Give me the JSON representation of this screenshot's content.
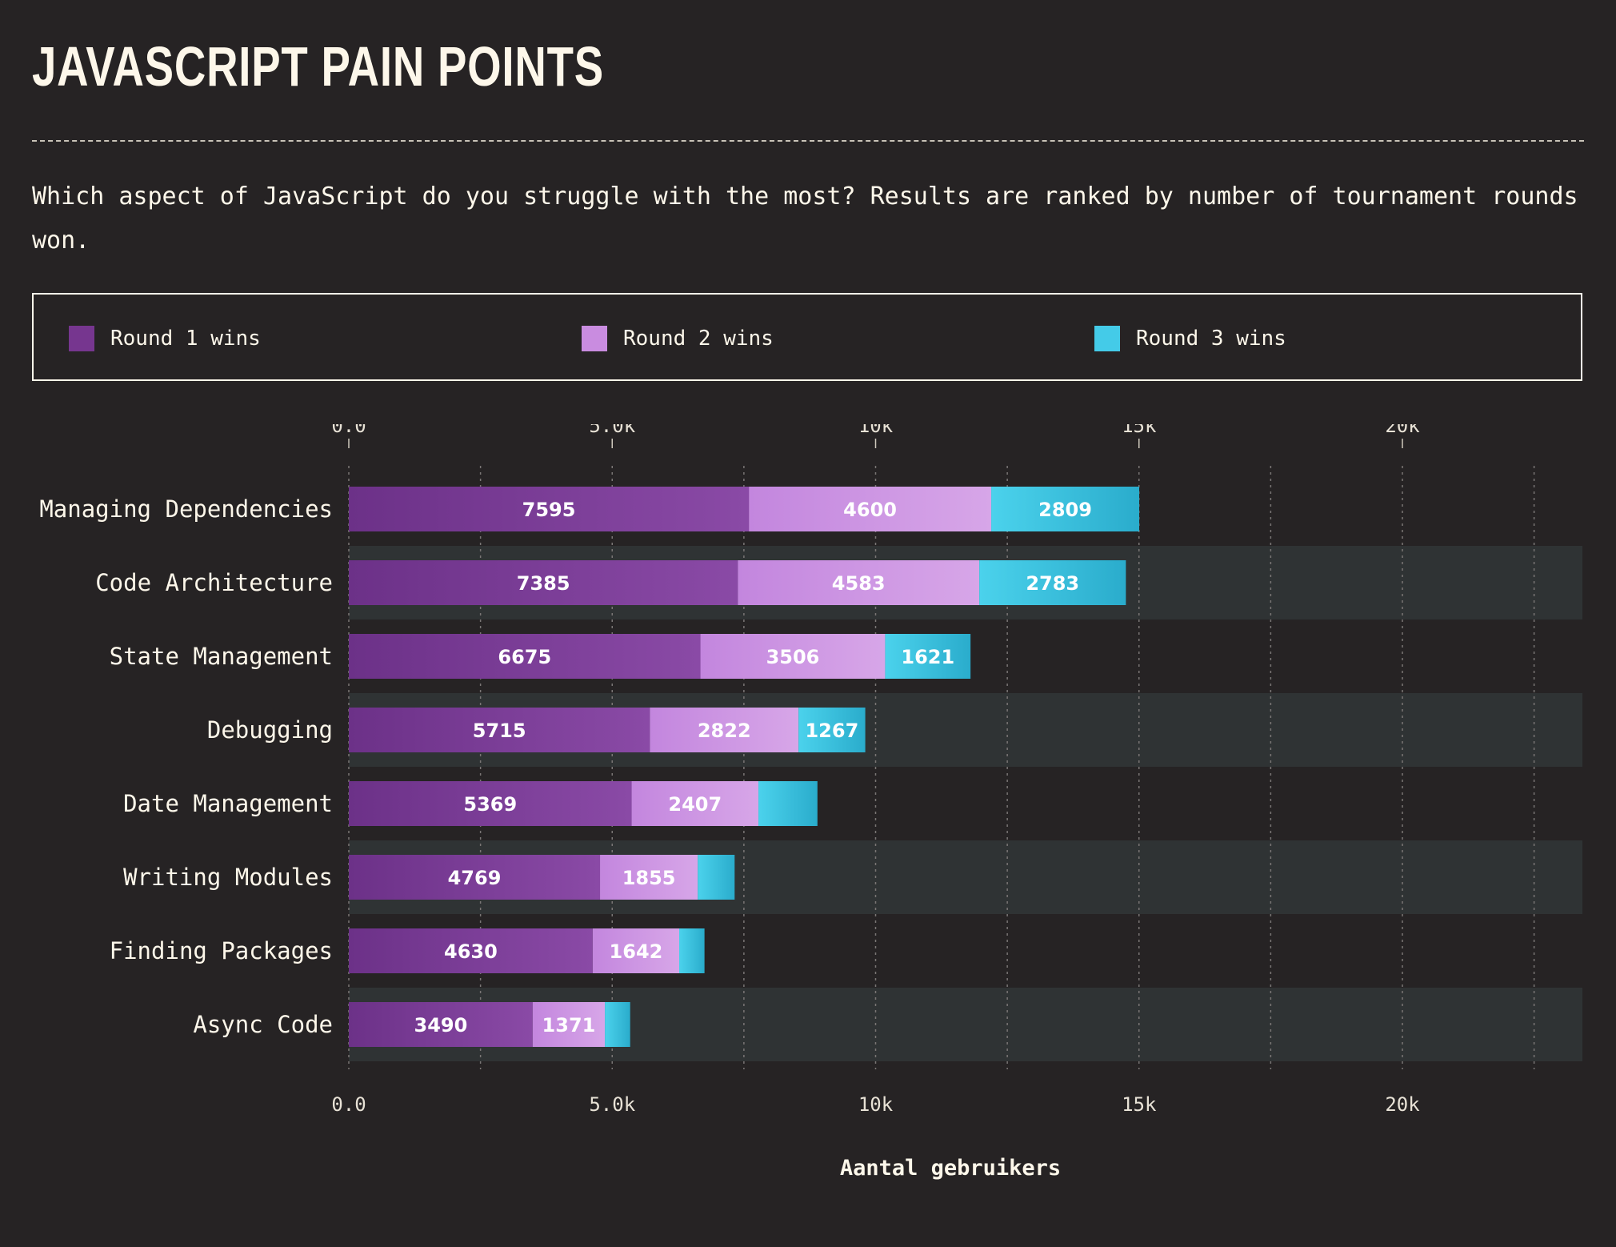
{
  "title": "JAVASCRIPT PAIN POINTS",
  "subtitle": "Which aspect of JavaScript do you struggle with the most? Results are ranked by number of tournament rounds won.",
  "legend": [
    {
      "label": "Round 1 wins",
      "color": "#76368f"
    },
    {
      "label": "Round 2 wins",
      "color": "#c98ce0"
    },
    {
      "label": "Round 3 wins",
      "color": "#44cbe8"
    }
  ],
  "chart_data": {
    "type": "bar",
    "orientation": "horizontal",
    "stacked": true,
    "xlabel": "Aantal gebruikers",
    "xlim": [
      0,
      23500
    ],
    "xticks": [
      0,
      5000,
      10000,
      15000,
      20000
    ],
    "xtick_labels": [
      "0.0",
      "5.0k",
      "10k",
      "15k",
      "20k"
    ],
    "grid": true,
    "categories": [
      "Managing Dependencies",
      "Code Architecture",
      "State Management",
      "Debugging",
      "Date Management",
      "Writing Modules",
      "Finding Packages",
      "Async Code"
    ],
    "series": [
      {
        "name": "Round 1 wins",
        "color": "#76368f",
        "values": [
          7595,
          7385,
          6675,
          5715,
          5369,
          4769,
          4630,
          3490
        ]
      },
      {
        "name": "Round 2 wins",
        "color": "#c98ce0",
        "values": [
          4600,
          4583,
          3506,
          2822,
          2407,
          1855,
          1642,
          1371
        ]
      },
      {
        "name": "Round 3 wins",
        "color": "#44cbe8",
        "values": [
          2809,
          2783,
          1621,
          1267,
          1120,
          700,
          480,
          480
        ]
      }
    ],
    "data_labels": [
      [
        "7595",
        "7385",
        "6675",
        "5715",
        "5369",
        "4769",
        "4630",
        "3490"
      ],
      [
        "4600",
        "4583",
        "3506",
        "2822",
        "2407",
        "1855",
        "1642",
        "1371"
      ],
      [
        "2809",
        "2783",
        "1621",
        "1267",
        "",
        "",
        "",
        ""
      ]
    ]
  }
}
